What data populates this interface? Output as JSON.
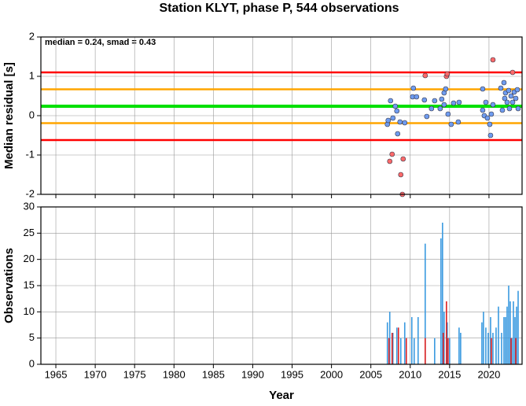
{
  "chart_data": [
    {
      "type": "scatter",
      "title": "Station KLYT, phase P, 544 observations",
      "annotation": "median = 0.24, smad = 0.43",
      "ylabel": "Median residual [s]",
      "xlim": [
        1963.1,
        2024.2
      ],
      "ylim": [
        -2,
        2
      ],
      "yticks": [
        -2,
        -1,
        0,
        1,
        2
      ],
      "xticks": [
        1965,
        1970,
        1975,
        1980,
        1985,
        1990,
        1995,
        2000,
        2005,
        2010,
        2015,
        2020
      ],
      "grid": true,
      "hlines": [
        {
          "value": 1.1,
          "color": "#ff0000"
        },
        {
          "value": 0.67,
          "color": "#ffa500"
        },
        {
          "value": 0.24,
          "color": "#00e000"
        },
        {
          "value": -0.19,
          "color": "#ffa500"
        },
        {
          "value": -0.62,
          "color": "#ff0000"
        }
      ],
      "series": [
        {
          "color": "#6f9cf0",
          "x": [
            2007.1,
            2007.2,
            2007.5,
            2007.8,
            2008.1,
            2008.3,
            2008.4,
            2008.7,
            2009.3,
            2010.4,
            2010.3,
            2010.8,
            2011.8,
            2012.1,
            2012.7,
            2013.1,
            2013.8,
            2014.0,
            2014.3,
            2014.5,
            2014.3,
            2014.8,
            2015.2,
            2015.5,
            2016.1,
            2016.2,
            2019.2,
            2019.2,
            2019.4,
            2019.6,
            2019.8,
            2020.1,
            2020.2,
            2020.3,
            2020.5,
            2021.5,
            2021.7,
            2021.9,
            2022.0,
            2022.1,
            2022.3,
            2022.5,
            2022.6,
            2022.8,
            2023.0,
            2023.2,
            2023.4,
            2023.6,
            2023.7
          ],
          "values": [
            -0.22,
            -0.12,
            0.38,
            -0.06,
            0.24,
            0.12,
            -0.46,
            -0.16,
            -0.18,
            0.7,
            0.48,
            0.48,
            0.4,
            -0.02,
            0.18,
            0.38,
            0.18,
            0.42,
            0.58,
            0.68,
            0.28,
            0.04,
            -0.22,
            0.32,
            -0.16,
            0.34,
            0.68,
            0.14,
            0.0,
            0.34,
            -0.06,
            -0.22,
            -0.5,
            0.04,
            0.28,
            0.7,
            0.14,
            0.84,
            0.44,
            0.58,
            0.34,
            0.64,
            0.18,
            0.5,
            0.34,
            0.6,
            0.44,
            0.66,
            0.18
          ]
        },
        {
          "color": "#ff6a6a",
          "x": [
            2007.4,
            2007.7,
            2009.1,
            2008.8,
            2009.0,
            2011.9,
            2014.6,
            2014.7,
            2020.5,
            2023.0
          ],
          "values": [
            -1.16,
            -0.98,
            -1.1,
            -1.5,
            -2.0,
            1.02,
            1.0,
            1.06,
            1.42,
            1.1
          ]
        }
      ]
    },
    {
      "type": "bar",
      "xlabel": "Year",
      "ylabel": "Observations",
      "xlim": [
        1963.1,
        2024.2
      ],
      "ylim": [
        0,
        30
      ],
      "yticks": [
        0,
        5,
        10,
        15,
        20,
        25,
        30
      ],
      "xticks": [
        1965,
        1970,
        1975,
        1980,
        1985,
        1990,
        1995,
        2000,
        2005,
        2010,
        2015,
        2020
      ],
      "grid": true,
      "series": [
        {
          "color": "#3a9ae0",
          "x": [
            2007.1,
            2007.4,
            2007.8,
            2008.3,
            2008.8,
            2009.3,
            2010.2,
            2010.5,
            2011.0,
            2011.9,
            2013.1,
            2013.9,
            2014.1,
            2014.3,
            2014.7,
            2015.0,
            2016.2,
            2016.4,
            2019.1,
            2019.3,
            2019.6,
            2019.9,
            2020.2,
            2020.5,
            2020.9,
            2021.2,
            2021.6,
            2021.9,
            2022.1,
            2022.3,
            2022.5,
            2022.7,
            2022.9,
            2023.1,
            2023.3,
            2023.5,
            2023.7
          ],
          "values": [
            8,
            10,
            6,
            7,
            5,
            8,
            9,
            5,
            9,
            23,
            5,
            24,
            27,
            10,
            8,
            5,
            7,
            6,
            8,
            10,
            7,
            6,
            9,
            6,
            7,
            11,
            6,
            9,
            9,
            11,
            15,
            12,
            5,
            12,
            9,
            11,
            14
          ]
        },
        {
          "color": "#e02020",
          "x": [
            2007.3,
            2007.7,
            2008.5,
            2009.5,
            2011.9,
            2014.2,
            2014.6,
            2014.8,
            2020.3,
            2022.8,
            2023.4
          ],
          "values": [
            5,
            6,
            7,
            5,
            5,
            6,
            12,
            5,
            5,
            5,
            5
          ]
        }
      ]
    }
  ]
}
